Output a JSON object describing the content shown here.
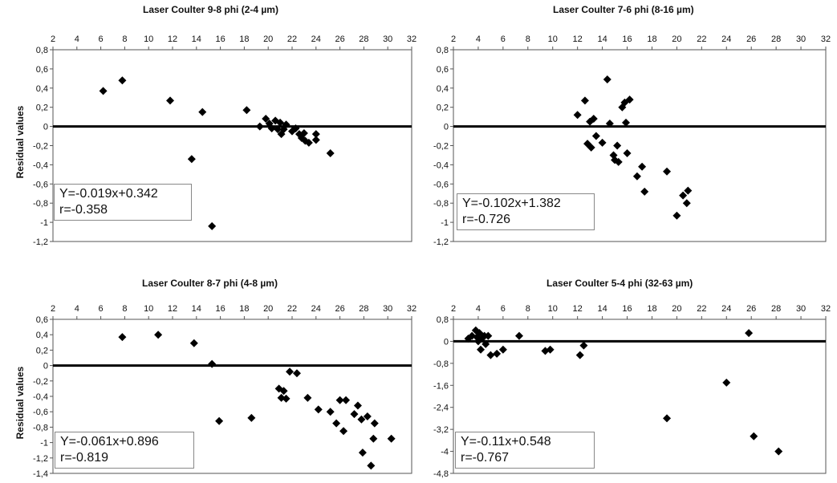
{
  "y_axis_label": "Residual values",
  "chart_data": [
    {
      "type": "scatter",
      "title": "Laser Coulter  9-8 phi (2-4 µm)",
      "xlim": [
        2,
        32
      ],
      "ylim": [
        -1.2,
        0.8
      ],
      "xticks": [
        "2",
        "4",
        "6",
        "8",
        "10",
        "12",
        "14",
        "16",
        "18",
        "20",
        "22",
        "24",
        "26",
        "28",
        "30",
        "32"
      ],
      "yticks": [
        "0,8",
        "0,6",
        "0,4",
        "0,2",
        "0",
        "-0,2",
        "-0,4",
        "-0,6",
        "-0,8",
        "-1",
        "-1,2"
      ],
      "equation": "Y=-0.019x+0.342",
      "r": "r=-0.358",
      "points": [
        [
          6.2,
          0.37
        ],
        [
          7.8,
          0.48
        ],
        [
          11.8,
          0.27
        ],
        [
          13.6,
          -0.34
        ],
        [
          14.5,
          0.15
        ],
        [
          15.3,
          -1.04
        ],
        [
          18.2,
          0.17
        ],
        [
          19.3,
          0.0
        ],
        [
          19.8,
          0.08
        ],
        [
          20.1,
          0.03
        ],
        [
          20.3,
          -0.02
        ],
        [
          20.6,
          0.06
        ],
        [
          20.8,
          -0.03
        ],
        [
          21.0,
          0.04
        ],
        [
          21.1,
          -0.08
        ],
        [
          21.3,
          -0.03
        ],
        [
          21.5,
          0.02
        ],
        [
          22.0,
          -0.05
        ],
        [
          22.3,
          -0.02
        ],
        [
          22.6,
          -0.08
        ],
        [
          22.8,
          -0.12
        ],
        [
          23.0,
          -0.07
        ],
        [
          23.1,
          -0.15
        ],
        [
          23.4,
          -0.17
        ],
        [
          24.0,
          -0.08
        ],
        [
          24.0,
          -0.14
        ],
        [
          25.2,
          -0.28
        ]
      ]
    },
    {
      "type": "scatter",
      "title": "Laser Coulter 7-6 phi (8-16 µm)",
      "xlim": [
        2,
        32
      ],
      "ylim": [
        -1.2,
        0.8
      ],
      "xticks": [
        "2",
        "4",
        "6",
        "8",
        "10",
        "12",
        "14",
        "16",
        "18",
        "20",
        "22",
        "24",
        "26",
        "28",
        "30",
        "32"
      ],
      "yticks": [
        "0,8",
        "0,6",
        "0,4",
        "0,2",
        "0",
        "-0,2",
        "-0,4",
        "-0,6",
        "-0,8",
        "-1",
        "-1,2"
      ],
      "equation": "Y=-0.102x+1.382",
      "r": "r=-0.726",
      "points": [
        [
          12.0,
          0.12
        ],
        [
          12.6,
          0.27
        ],
        [
          12.8,
          -0.18
        ],
        [
          13.0,
          0.05
        ],
        [
          13.1,
          -0.22
        ],
        [
          13.3,
          0.08
        ],
        [
          13.5,
          -0.1
        ],
        [
          14.0,
          -0.17
        ],
        [
          14.4,
          0.49
        ],
        [
          14.6,
          0.03
        ],
        [
          14.9,
          -0.3
        ],
        [
          15.0,
          -0.35
        ],
        [
          15.2,
          -0.2
        ],
        [
          15.3,
          -0.37
        ],
        [
          15.6,
          0.2
        ],
        [
          15.8,
          0.25
        ],
        [
          15.9,
          0.04
        ],
        [
          16.0,
          -0.28
        ],
        [
          16.2,
          0.28
        ],
        [
          16.8,
          -0.52
        ],
        [
          17.2,
          -0.42
        ],
        [
          17.4,
          -0.68
        ],
        [
          19.2,
          -0.47
        ],
        [
          20.0,
          -0.93
        ],
        [
          20.5,
          -0.72
        ],
        [
          20.8,
          -0.8
        ],
        [
          20.9,
          -0.67
        ]
      ]
    },
    {
      "type": "scatter",
      "title": "Laser Coulter  8-7 phi (4-8 µm)",
      "xlim": [
        2,
        32
      ],
      "ylim": [
        -1.4,
        0.6
      ],
      "xticks": [
        "2",
        "4",
        "6",
        "8",
        "10",
        "12",
        "14",
        "16",
        "18",
        "20",
        "22",
        "24",
        "26",
        "28",
        "30",
        "32"
      ],
      "yticks": [
        "0,6",
        "0,4",
        "0,2",
        "0",
        "-0,2",
        "-0,4",
        "-0,6",
        "-0,8",
        "-1",
        "-1,2",
        "-1,4"
      ],
      "equation": "Y=-0.061x+0.896",
      "r": "r=-0.819",
      "points": [
        [
          7.8,
          0.37
        ],
        [
          10.8,
          0.4
        ],
        [
          13.8,
          0.29
        ],
        [
          15.3,
          0.02
        ],
        [
          15.9,
          -0.72
        ],
        [
          18.6,
          -0.68
        ],
        [
          20.9,
          -0.3
        ],
        [
          21.1,
          -0.42
        ],
        [
          21.3,
          -0.33
        ],
        [
          21.5,
          -0.43
        ],
        [
          21.8,
          -0.08
        ],
        [
          22.4,
          -0.1
        ],
        [
          23.3,
          -0.42
        ],
        [
          24.2,
          -0.57
        ],
        [
          25.2,
          -0.6
        ],
        [
          25.7,
          -0.75
        ],
        [
          26.0,
          -0.45
        ],
        [
          26.3,
          -0.85
        ],
        [
          26.5,
          -0.45
        ],
        [
          27.2,
          -0.63
        ],
        [
          27.5,
          -0.52
        ],
        [
          27.8,
          -0.7
        ],
        [
          27.9,
          -1.13
        ],
        [
          28.3,
          -0.66
        ],
        [
          28.6,
          -1.3
        ],
        [
          28.8,
          -0.95
        ],
        [
          28.9,
          -0.75
        ],
        [
          30.3,
          -0.95
        ]
      ]
    },
    {
      "type": "scatter",
      "title": "Laser Coulter  5-4 phi (32-63 µm)",
      "xlim": [
        2,
        32
      ],
      "ylim": [
        -4.8,
        0.8
      ],
      "xticks": [
        "2",
        "4",
        "6",
        "8",
        "10",
        "12",
        "14",
        "16",
        "18",
        "20",
        "22",
        "24",
        "26",
        "28",
        "30",
        "32"
      ],
      "yticks": [
        "0,8",
        "0",
        "-0,8",
        "-1,6",
        "-2,4",
        "-3,2",
        "-4",
        "-4,8"
      ],
      "equation": "Y=-0.11x+0.548",
      "r": "r=-0.767",
      "points": [
        [
          3.2,
          0.1
        ],
        [
          3.5,
          0.2
        ],
        [
          3.8,
          0.4
        ],
        [
          3.9,
          0.15
        ],
        [
          4.0,
          0.0
        ],
        [
          4.1,
          0.3
        ],
        [
          4.2,
          -0.3
        ],
        [
          4.3,
          0.1
        ],
        [
          4.5,
          0.2
        ],
        [
          4.6,
          -0.1
        ],
        [
          4.8,
          0.2
        ],
        [
          5.0,
          -0.5
        ],
        [
          5.5,
          -0.45
        ],
        [
          6.0,
          -0.3
        ],
        [
          7.3,
          0.2
        ],
        [
          9.4,
          -0.35
        ],
        [
          9.8,
          -0.3
        ],
        [
          12.2,
          -0.5
        ],
        [
          12.5,
          -0.15
        ],
        [
          19.2,
          -2.8
        ],
        [
          24.0,
          -1.5
        ],
        [
          25.8,
          0.3
        ],
        [
          26.2,
          -3.45
        ],
        [
          28.2,
          -4.0
        ]
      ]
    }
  ]
}
